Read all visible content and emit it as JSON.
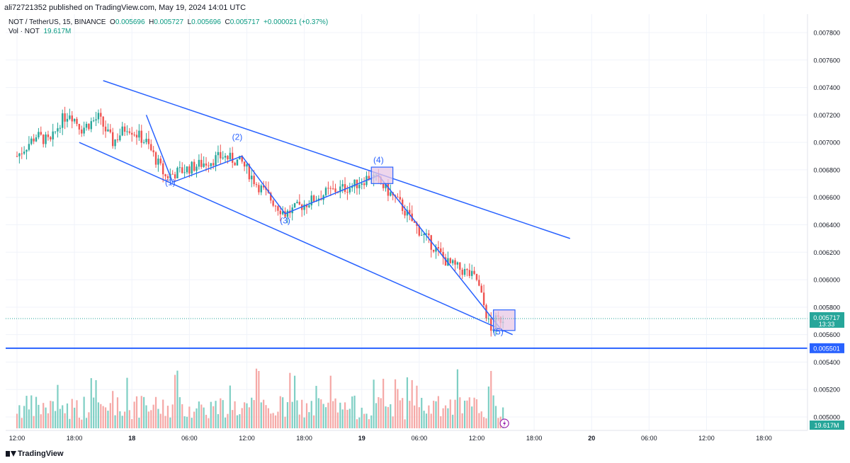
{
  "header": {
    "publish_line": "ali72721352 published on TradingView.com, May 19, 2024 14:01 UTC"
  },
  "legend": {
    "symbol": "NOT / TetherUS, 15, BINANCE",
    "open_label": "O",
    "open": "0.005696",
    "high_label": "H",
    "high": "0.005727",
    "low_label": "L",
    "low": "0.005696",
    "close_label": "C",
    "close": "0.005717",
    "change": "+0.000021 (+0.37%)",
    "vol_label": "Vol · NOT",
    "vol_value": "19.617M"
  },
  "footer": {
    "brand": "TradingView"
  },
  "colors": {
    "up": "#26a69a",
    "down": "#ef5350",
    "up_volume": "#7fcfc4",
    "down_volume": "#f5a8a6",
    "drawing_blue": "#2962ff",
    "box_fill": "#e8c8e6",
    "grid": "#f0f3fa"
  },
  "chart_data": {
    "type": "candlestick",
    "symbol": "NOT / TetherUS",
    "interval": "15",
    "exchange": "BINANCE",
    "ylim": [
      0.0049,
      0.0079
    ],
    "y_ticks": [
      "0.007800",
      "0.007600",
      "0.007400",
      "0.007200",
      "0.007000",
      "0.006800",
      "0.006600",
      "0.006400",
      "0.006200",
      "0.006000",
      "0.005800",
      "0.005600",
      "0.005400",
      "0.005200",
      "0.005000"
    ],
    "x_ticks": [
      {
        "label": "12:00",
        "t": 0
      },
      {
        "label": "18:00",
        "t": 24
      },
      {
        "label": "18",
        "t": 48
      },
      {
        "label": "06:00",
        "t": 72
      },
      {
        "label": "12:00",
        "t": 96
      },
      {
        "label": "18:00",
        "t": 120
      },
      {
        "label": "19",
        "t": 144
      },
      {
        "label": "06:00",
        "t": 168
      },
      {
        "label": "12:00",
        "t": 192
      },
      {
        "label": "18:00",
        "t": 216
      },
      {
        "label": "20",
        "t": 240
      },
      {
        "label": "06:00",
        "t": 264
      },
      {
        "label": "12:00",
        "t": 288
      },
      {
        "label": "18:00",
        "t": 312
      }
    ],
    "price_path": [
      [
        0,
        0.0069
      ],
      [
        8,
        0.00705
      ],
      [
        14,
        0.007
      ],
      [
        18,
        0.00715
      ],
      [
        22,
        0.00722
      ],
      [
        27,
        0.0071
      ],
      [
        34,
        0.00718
      ],
      [
        40,
        0.007
      ],
      [
        46,
        0.00712
      ],
      [
        54,
        0.007
      ],
      [
        62,
        0.00675
      ],
      [
        70,
        0.0068
      ],
      [
        78,
        0.00685
      ],
      [
        86,
        0.0069
      ],
      [
        94,
        0.00685
      ],
      [
        100,
        0.0067
      ],
      [
        108,
        0.00655
      ],
      [
        112,
        0.00648
      ],
      [
        120,
        0.00655
      ],
      [
        130,
        0.00664
      ],
      [
        140,
        0.00668
      ],
      [
        148,
        0.00676
      ],
      [
        153,
        0.00668
      ],
      [
        160,
        0.00655
      ],
      [
        166,
        0.0064
      ],
      [
        172,
        0.00628
      ],
      [
        180,
        0.00612
      ],
      [
        188,
        0.00605
      ],
      [
        192,
        0.006
      ],
      [
        196,
        0.00575
      ],
      [
        198,
        0.00562
      ],
      [
        200,
        0.0057
      ],
      [
        203,
        0.00572
      ]
    ],
    "last_price": "0.005717",
    "countdown": "13:33",
    "horizontal_line": {
      "price": 0.005501,
      "label": "0.005501"
    },
    "volume_label": "19.617M",
    "wave_labels": [
      {
        "label": "(1)",
        "t": 64,
        "price": 0.00669
      },
      {
        "label": "(2)",
        "t": 92,
        "price": 0.00702
      },
      {
        "label": "(3)",
        "t": 112,
        "price": 0.00641
      },
      {
        "label": "(4)",
        "t": 151,
        "price": 0.00685
      },
      {
        "label": "(5)",
        "t": 201,
        "price": 0.0056
      }
    ],
    "wave_points": [
      {
        "t": 54,
        "price": 0.0072
      },
      {
        "t": 65,
        "price": 0.00671
      },
      {
        "t": 94,
        "price": 0.0069
      },
      {
        "t": 112,
        "price": 0.00648
      },
      {
        "t": 151,
        "price": 0.00676
      },
      {
        "t": 203,
        "price": 0.00562
      }
    ],
    "channel_upper": [
      {
        "t": 36,
        "price": 0.00745
      },
      {
        "t": 231,
        "price": 0.0063
      }
    ],
    "channel_lower": [
      {
        "t": 26,
        "price": 0.007
      },
      {
        "t": 207,
        "price": 0.0056
      }
    ],
    "highlight_boxes": [
      {
        "t0": 148,
        "t1": 157,
        "p0": 0.0067,
        "p1": 0.00682
      },
      {
        "t0": 199,
        "t1": 208,
        "p0": 0.00563,
        "p1": 0.00578
      }
    ],
    "volume_series_note": "",
    "grid": true,
    "legend": "top-left"
  }
}
